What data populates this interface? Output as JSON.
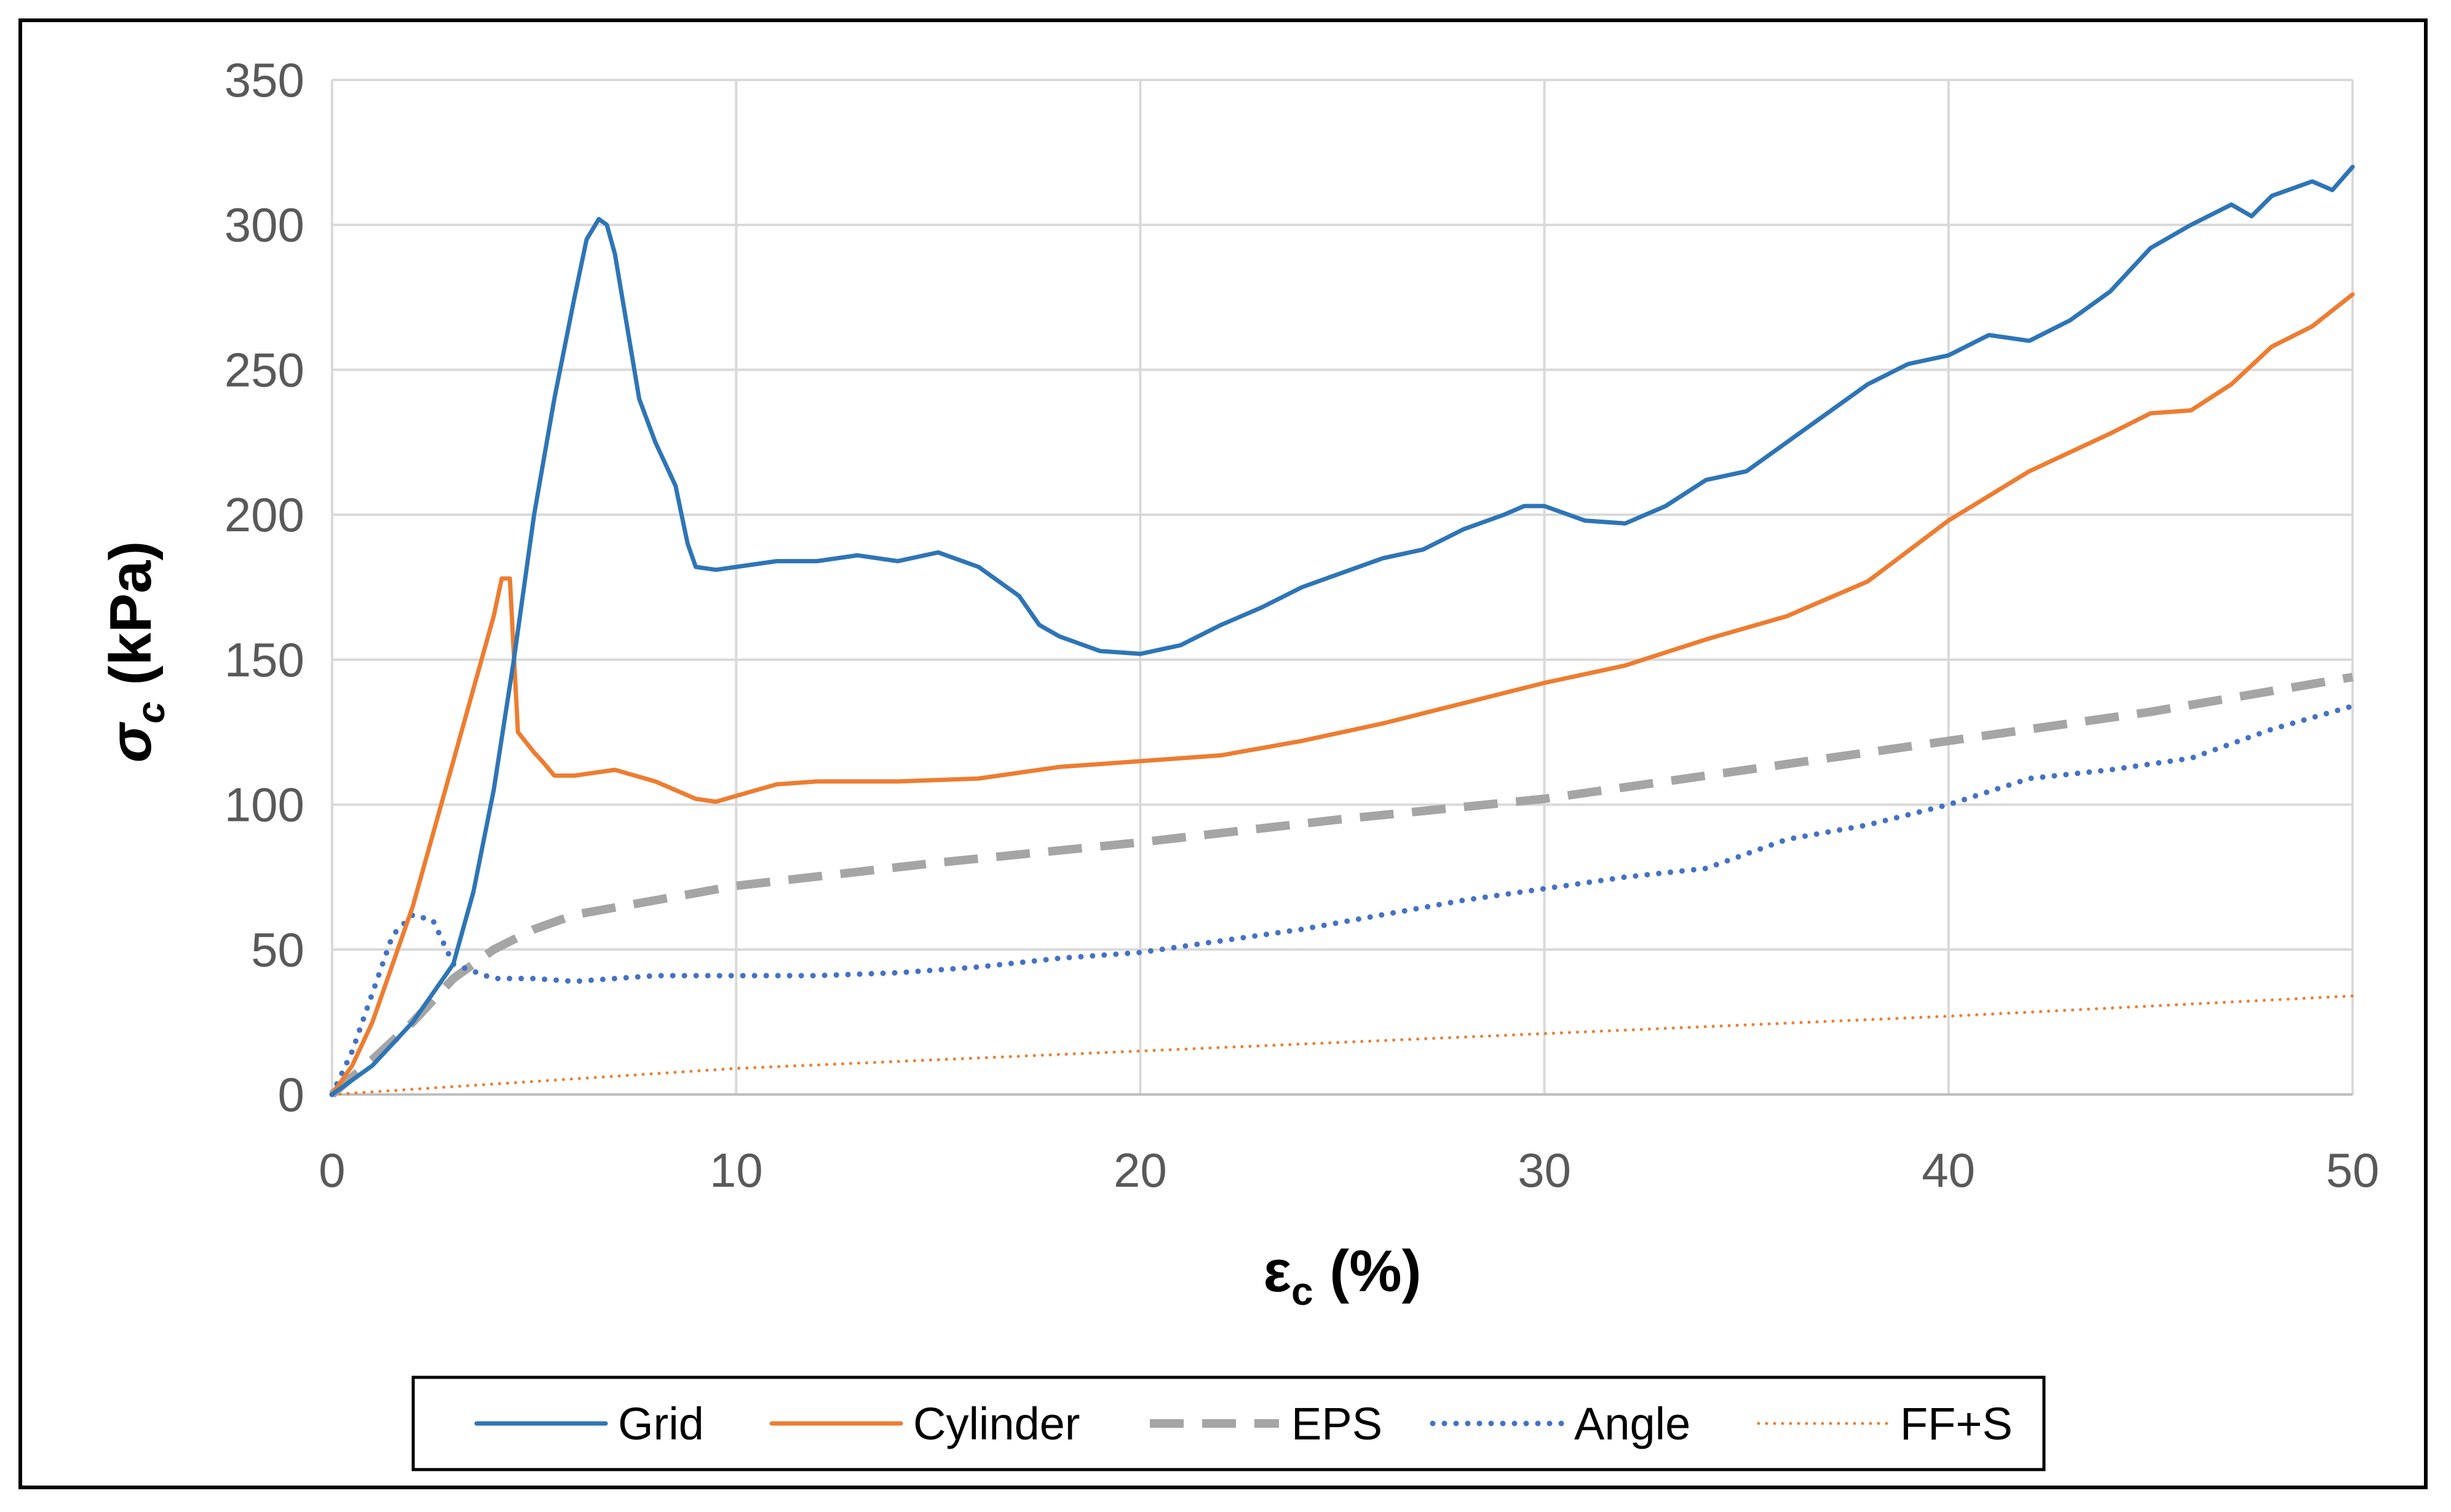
{
  "chart_data": {
    "type": "line",
    "title": "",
    "xlabel": "εc (%)",
    "ylabel": "σc (kPa)",
    "xlim": [
      0,
      50
    ],
    "ylim": [
      0,
      350
    ],
    "xticks": [
      0,
      10,
      20,
      30,
      40,
      50
    ],
    "yticks": [
      0,
      50,
      100,
      150,
      200,
      250,
      300,
      350
    ],
    "grid": true,
    "legend": "bottom",
    "series": [
      {
        "name": "Grid",
        "color": "#2E75B6",
        "style": "solid",
        "x": [
          0,
          1,
          2,
          3,
          3.5,
          4,
          4.5,
          5,
          5.5,
          6,
          6.3,
          6.6,
          6.8,
          7,
          7.3,
          7.6,
          8,
          8.5,
          8.8,
          9,
          9.5,
          10,
          11,
          12,
          13,
          14,
          15,
          16,
          17,
          17.5,
          18,
          19,
          20,
          21,
          22,
          23,
          24,
          25,
          26,
          27,
          28,
          29,
          29.5,
          30,
          31,
          32,
          33,
          34,
          35,
          36,
          37,
          38,
          39,
          40,
          41,
          42,
          43,
          44,
          45,
          46,
          47,
          47.5,
          48,
          49,
          49.5,
          50
        ],
        "y": [
          0,
          10,
          25,
          45,
          70,
          105,
          150,
          200,
          240,
          275,
          295,
          302,
          300,
          290,
          265,
          240,
          225,
          210,
          190,
          182,
          181,
          182,
          184,
          184,
          186,
          184,
          187,
          182,
          172,
          162,
          158,
          153,
          152,
          155,
          162,
          168,
          175,
          180,
          185,
          188,
          195,
          200,
          203,
          203,
          198,
          197,
          203,
          212,
          215,
          225,
          235,
          245,
          252,
          255,
          262,
          260,
          267,
          277,
          292,
          300,
          307,
          303,
          310,
          315,
          312,
          320
        ]
      },
      {
        "name": "Cylinder",
        "color": "#ED7D31",
        "style": "solid",
        "x": [
          0,
          0.5,
          1,
          1.5,
          2,
          2.5,
          3,
          3.5,
          4,
          4.2,
          4.4,
          4.6,
          5,
          5.2,
          5.5,
          6,
          7,
          8,
          9,
          9.5,
          10,
          11,
          12,
          14,
          16,
          18,
          20,
          21,
          22,
          24,
          26,
          28,
          30,
          32,
          34,
          36,
          38,
          40,
          42,
          44,
          45,
          46,
          47,
          48,
          49,
          50
        ],
        "y": [
          0,
          10,
          25,
          45,
          65,
          90,
          115,
          140,
          165,
          178,
          178,
          125,
          118,
          115,
          110,
          110,
          112,
          108,
          102,
          101,
          103,
          107,
          108,
          108,
          109,
          113,
          115,
          116,
          117,
          122,
          128,
          135,
          142,
          148,
          157,
          165,
          177,
          198,
          215,
          228,
          235,
          236,
          245,
          258,
          265,
          276
        ]
      },
      {
        "name": "EPS",
        "color": "#A5A5A5",
        "style": "dashed",
        "x": [
          0,
          1,
          2,
          3,
          4,
          5,
          6,
          8,
          10,
          15,
          20,
          25,
          30,
          35,
          40,
          45,
          50
        ],
        "y": [
          0,
          12,
          25,
          40,
          50,
          57,
          62,
          67,
          72,
          80,
          87,
          95,
          102,
          112,
          122,
          132,
          144
        ]
      },
      {
        "name": "Angle",
        "color": "#4472C4",
        "style": "dotted",
        "x": [
          0,
          0.5,
          1,
          1.5,
          2,
          2.5,
          3,
          4,
          5,
          6,
          7,
          8,
          10,
          12,
          14,
          16,
          18,
          20,
          22,
          24,
          26,
          28,
          30,
          32,
          34,
          36,
          38,
          40,
          42,
          44,
          46,
          48,
          50
        ],
        "y": [
          0,
          15,
          35,
          55,
          62,
          60,
          45,
          40,
          40,
          39,
          40,
          41,
          41,
          41,
          42,
          44,
          47,
          49,
          53,
          57,
          62,
          67,
          71,
          75,
          78,
          88,
          93,
          100,
          109,
          112,
          116,
          126,
          134
        ]
      },
      {
        "name": "FF+S",
        "color": "#ED7D31",
        "style": "fine-dotted",
        "x": [
          0,
          10,
          20,
          30,
          40,
          50
        ],
        "y": [
          0,
          9,
          15,
          21,
          27,
          34
        ]
      }
    ]
  }
}
